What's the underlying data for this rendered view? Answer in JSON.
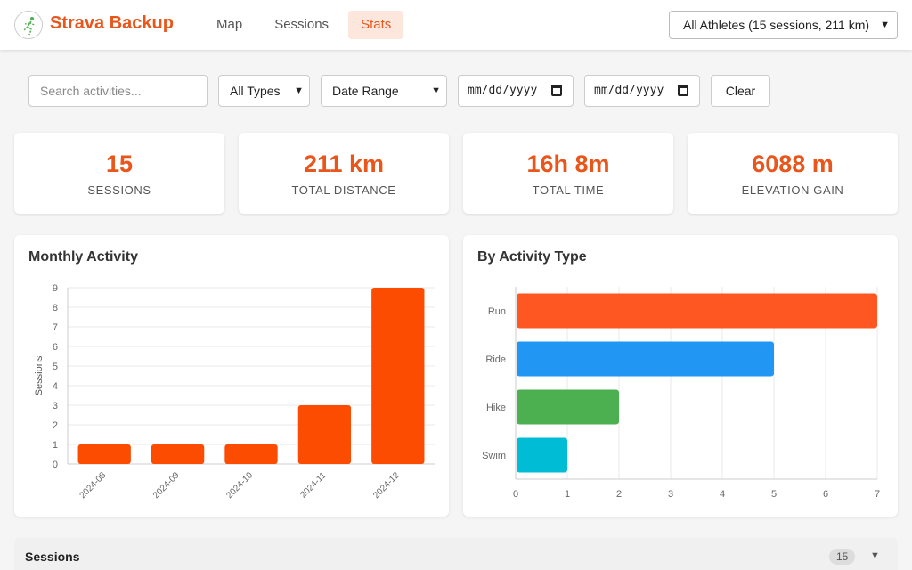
{
  "app": {
    "title": "Strava Backup"
  },
  "nav": {
    "items": [
      {
        "label": "Map",
        "active": false
      },
      {
        "label": "Sessions",
        "active": false
      },
      {
        "label": "Stats",
        "active": true
      }
    ]
  },
  "athlete_select": {
    "value": "All Athletes (15 sessions, 211 km)"
  },
  "filters": {
    "search_placeholder": "Search activities...",
    "type_value": "All Types",
    "date_range_value": "Date Range",
    "date_from": "mm/dd/yyyy",
    "date_to": "mm/dd/yyyy",
    "clear_label": "Clear"
  },
  "stats": [
    {
      "value": "15",
      "label": "SESSIONS"
    },
    {
      "value": "211 km",
      "label": "TOTAL DISTANCE"
    },
    {
      "value": "16h 8m",
      "label": "TOTAL TIME"
    },
    {
      "value": "6088 m",
      "label": "ELEVATION GAIN"
    }
  ],
  "chart_data": [
    {
      "type": "bar",
      "title": "Monthly Activity",
      "categories": [
        "2024-08",
        "2024-09",
        "2024-10",
        "2024-11",
        "2024-12"
      ],
      "values": [
        1,
        1,
        1,
        3,
        9
      ],
      "ylabel": "Sessions",
      "xlabel": "",
      "ylim": [
        0,
        9
      ],
      "yticks": [
        0,
        1,
        2,
        3,
        4,
        5,
        6,
        7,
        8,
        9
      ],
      "grid": true,
      "color": "#fc4c02"
    },
    {
      "type": "bar",
      "orientation": "horizontal",
      "title": "By Activity Type",
      "categories": [
        "Run",
        "Ride",
        "Hike",
        "Swim"
      ],
      "values": [
        7,
        5,
        2,
        1
      ],
      "colors": [
        "#ff5722",
        "#2196f3",
        "#4caf50",
        "#00bcd4"
      ],
      "xlim": [
        0,
        7
      ],
      "xticks": [
        0,
        1,
        2,
        3,
        4,
        5,
        6,
        7
      ],
      "grid": true
    }
  ],
  "sessions": {
    "title": "Sessions",
    "count": "15"
  },
  "icons": {
    "logo": "runner-logo-icon",
    "dropdown": "chevron-down-icon",
    "calendar": "calendar-icon",
    "toggle": "triangle-down-icon"
  }
}
